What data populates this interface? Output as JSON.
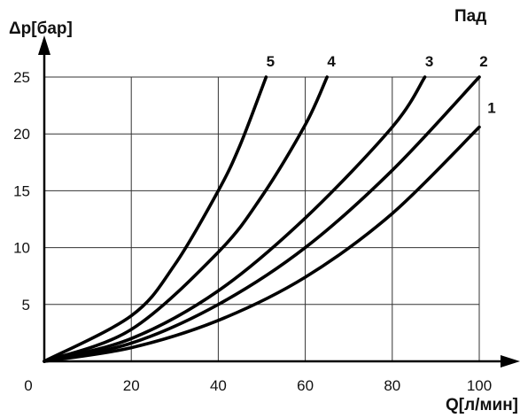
{
  "chart_data": {
    "type": "line",
    "title": "Пад",
    "xlabel": "Q[л/мин]",
    "ylabel": "Δp[бар]",
    "xlim": [
      0,
      100
    ],
    "ylim": [
      0,
      25
    ],
    "x_ticks": [
      "0",
      "20",
      "40",
      "60",
      "80",
      "100"
    ],
    "y_ticks": [
      "5",
      "10",
      "15",
      "20",
      "25"
    ],
    "x_tick_values": [
      0,
      20,
      40,
      60,
      80,
      100
    ],
    "y_tick_values": [
      5,
      10,
      15,
      20,
      25
    ],
    "grid": true,
    "colors": {
      "line": "#000000",
      "grid": "#333333"
    },
    "series": [
      {
        "name": "1",
        "x": [
          0,
          20,
          40,
          60,
          80,
          100
        ],
        "y": [
          0,
          1.2,
          3.6,
          7.4,
          13.0,
          20.6
        ]
      },
      {
        "name": "2",
        "x": [
          0,
          20,
          40,
          60,
          80,
          100
        ],
        "y": [
          0,
          1.6,
          5.0,
          10.0,
          16.8,
          25.0
        ]
      },
      {
        "name": "3",
        "x": [
          0,
          20,
          40,
          60,
          80,
          87.5
        ],
        "y": [
          0,
          2.0,
          6.2,
          12.6,
          20.6,
          25.0
        ]
      },
      {
        "name": "4",
        "x": [
          0,
          20,
          40,
          50,
          60,
          65
        ],
        "y": [
          0,
          2.8,
          9.6,
          14.5,
          20.8,
          25.0
        ]
      },
      {
        "name": "5",
        "x": [
          0,
          20,
          30,
          40,
          45,
          51
        ],
        "y": [
          0,
          4.0,
          8.5,
          15.0,
          19.0,
          25.0
        ]
      }
    ]
  }
}
